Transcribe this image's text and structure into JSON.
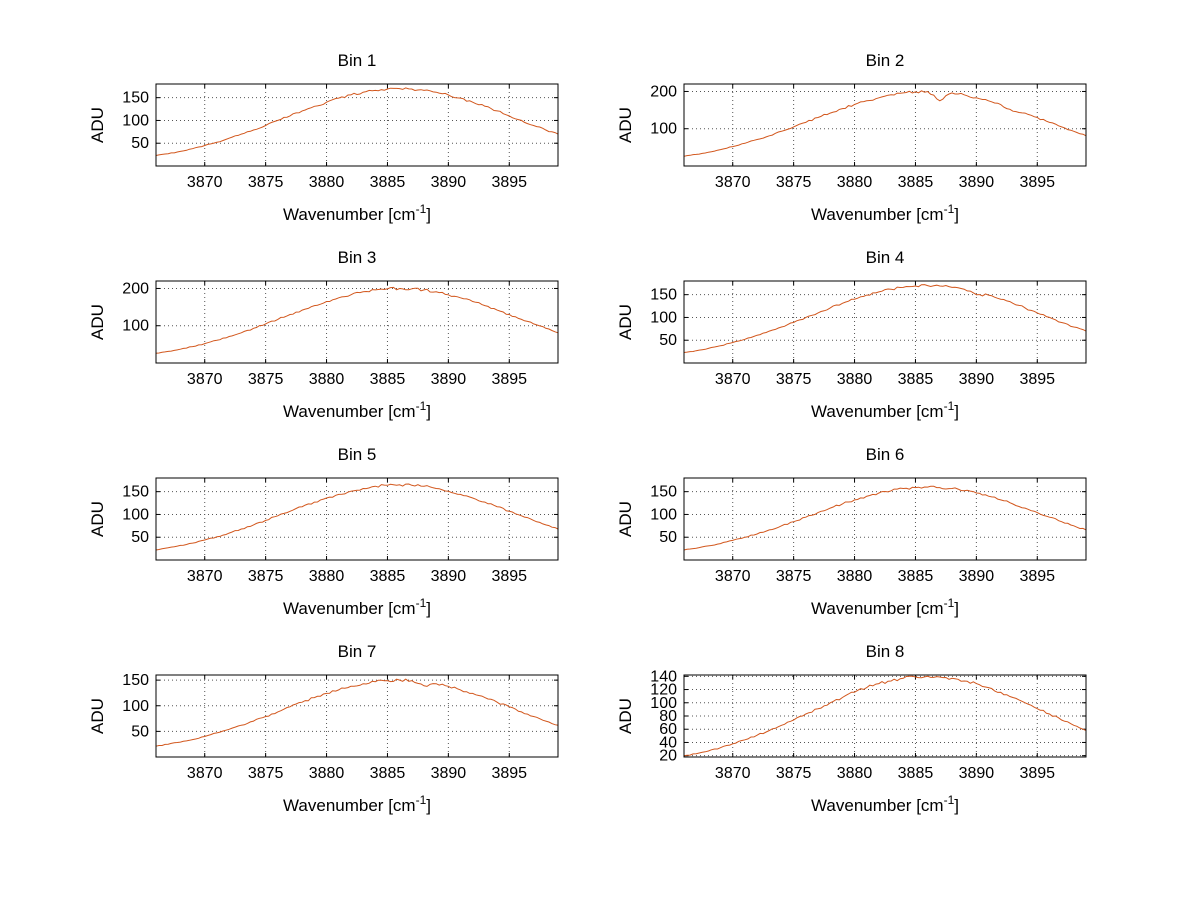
{
  "window": {
    "background": "#ffffff"
  },
  "chart_data": {
    "type": "line",
    "layout": {
      "rows": 4,
      "cols": 2
    },
    "title": "",
    "xlabel": "Wavenumber [cm⁻¹]",
    "xlabel_parts": {
      "pre": "Wavenumber [cm",
      "sup": "-1",
      "post": "]"
    },
    "ylabel": "ADU",
    "grid": true,
    "legend": false,
    "line_color": "#d2571d",
    "axis_color": "#000000",
    "grid_color": "#555555",
    "xlim": [
      3866,
      3899
    ],
    "xticks": [
      3870,
      3875,
      3880,
      3885,
      3890,
      3895
    ],
    "x": [
      3866,
      3867,
      3868,
      3869,
      3870,
      3871,
      3872,
      3873,
      3874,
      3875,
      3876,
      3877,
      3878,
      3879,
      3880,
      3881,
      3882,
      3883,
      3884,
      3885,
      3886,
      3887,
      3888,
      3889,
      3890,
      3891,
      3892,
      3893,
      3894,
      3895,
      3896,
      3897,
      3898,
      3899
    ],
    "series": [
      {
        "name": "Bin 1",
        "ylim": [
          0,
          180
        ],
        "yticks": [
          50,
          100,
          150
        ],
        "values": [
          23,
          27,
          32,
          38,
          45,
          52,
          61,
          70,
          79,
          89,
          100,
          110,
          121,
          131,
          140,
          149,
          156,
          162,
          166,
          169,
          170,
          169,
          166,
          162,
          156,
          149,
          140,
          131,
          121,
          110,
          100,
          89,
          79,
          70
        ]
      },
      {
        "name": "Bin 2",
        "ylim": [
          0,
          220
        ],
        "yticks": [
          100,
          200
        ],
        "values": [
          26,
          31,
          37,
          44,
          52,
          61,
          71,
          81,
          93,
          105,
          117,
          130,
          142,
          154,
          165,
          175,
          183,
          191,
          196,
          199,
          200,
          175,
          196,
          191,
          183,
          175,
          165,
          147,
          142,
          130,
          117,
          105,
          93,
          81
        ]
      },
      {
        "name": "Bin 3",
        "ylim": [
          0,
          220
        ],
        "yticks": [
          100,
          200
        ],
        "values": [
          26,
          31,
          37,
          44,
          52,
          61,
          71,
          81,
          93,
          105,
          117,
          130,
          142,
          154,
          165,
          175,
          183,
          191,
          196,
          199,
          200,
          199,
          196,
          191,
          183,
          175,
          165,
          154,
          142,
          130,
          117,
          105,
          93,
          81
        ]
      },
      {
        "name": "Bin 4",
        "ylim": [
          0,
          180
        ],
        "yticks": [
          50,
          100,
          150
        ],
        "values": [
          23,
          27,
          32,
          38,
          45,
          52,
          61,
          70,
          79,
          89,
          100,
          110,
          121,
          131,
          140,
          149,
          156,
          162,
          166,
          169,
          170,
          169,
          166,
          162,
          150,
          149,
          140,
          131,
          121,
          110,
          100,
          89,
          79,
          70
        ]
      },
      {
        "name": "Bin 5",
        "ylim": [
          0,
          180
        ],
        "yticks": [
          50,
          100,
          150
        ],
        "values": [
          22,
          27,
          32,
          37,
          44,
          51,
          59,
          68,
          77,
          87,
          97,
          107,
          117,
          127,
          136,
          144,
          151,
          157,
          162,
          164,
          165,
          164,
          162,
          157,
          151,
          144,
          136,
          127,
          117,
          107,
          97,
          87,
          77,
          68
        ]
      },
      {
        "name": "Bin 6",
        "ylim": [
          0,
          180
        ],
        "yticks": [
          50,
          100,
          150
        ],
        "values": [
          22,
          26,
          31,
          36,
          43,
          50,
          57,
          66,
          75,
          84,
          94,
          104,
          114,
          123,
          132,
          140,
          147,
          152,
          157,
          159,
          160,
          159,
          157,
          152,
          147,
          140,
          132,
          123,
          114,
          104,
          94,
          84,
          75,
          66
        ]
      },
      {
        "name": "Bin 7",
        "ylim": [
          0,
          160
        ],
        "yticks": [
          50,
          100,
          150
        ],
        "values": [
          21,
          25,
          29,
          34,
          40,
          47,
          54,
          62,
          70,
          79,
          88,
          98,
          107,
          116,
          124,
          131,
          138,
          143,
          147,
          149,
          150,
          149,
          139,
          143,
          138,
          131,
          124,
          116,
          107,
          98,
          88,
          79,
          70,
          62
        ]
      },
      {
        "name": "Bin 8",
        "ylim": [
          18,
          142
        ],
        "yticks": [
          20,
          40,
          60,
          80,
          100,
          120,
          140
        ],
        "values": [
          20,
          23,
          27,
          32,
          38,
          44,
          51,
          58,
          66,
          74,
          83,
          91,
          100,
          108,
          116,
          123,
          129,
          133,
          137,
          139,
          140,
          139,
          137,
          133,
          129,
          123,
          116,
          108,
          100,
          91,
          83,
          74,
          66,
          58
        ]
      }
    ]
  }
}
